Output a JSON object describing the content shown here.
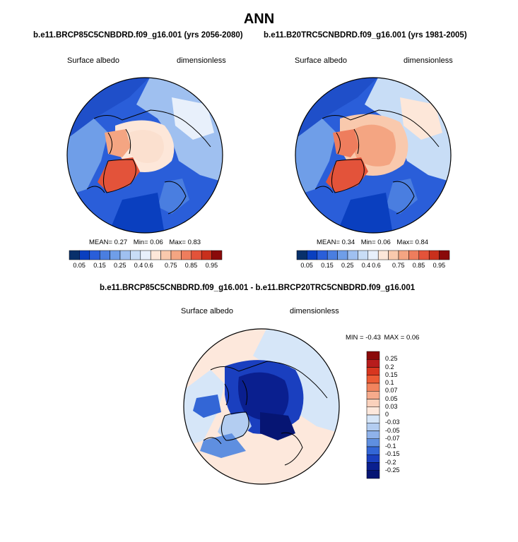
{
  "figure": {
    "title": "ANN",
    "diff_title": "b.e11.BRCP85C5CNBDRD.f09_g16.001 - b.e11.BRCP20TRC5CNBDRD.f09_g16.001"
  },
  "panels": [
    {
      "case": "b.e11.BRCP85C5CNBDRD.f09_g16.001 (yrs 2056-2080)",
      "var": "Surface albedo",
      "units": "dimensionless",
      "stats": {
        "mean_label": "MEAN=",
        "mean": "0.27",
        "min_label": "Min=",
        "min": "0.06",
        "max_label": "Max=",
        "max": "0.83"
      }
    },
    {
      "case": "b.e11.B20TRC5CNBDRD.f09_g16.001 (yrs 1981-2005)",
      "var": "Surface albedo",
      "units": "dimensionless",
      "stats": {
        "mean_label": "MEAN=",
        "mean": "0.34",
        "min_label": "Min=",
        "min": "0.06",
        "max_label": "Max=",
        "max": "0.84"
      }
    }
  ],
  "diff": {
    "var": "Surface albedo",
    "units": "dimensionless",
    "stats": {
      "min_label": "MIN =",
      "min": "-0.43",
      "max_label": "MAX =",
      "max": "0.06"
    }
  },
  "chart_data": [
    {
      "type": "map",
      "projection": "north-polar-stereographic",
      "title": "b.e11.BRCP85C5CNBDRD.f09_g16.001 (yrs 2056-2080)",
      "variable": "Surface albedo",
      "units": "dimensionless",
      "mean": 0.27,
      "min": 0.06,
      "max": 0.83,
      "colorbar_ticks": [
        "0.05",
        "0.15",
        "0.25",
        "0.4",
        "0.6",
        "0.75",
        "0.85",
        "0.95"
      ],
      "colorbar_levels": [
        0.05,
        0.1,
        0.15,
        0.2,
        0.25,
        0.3,
        0.4,
        0.5,
        0.6,
        0.65,
        0.75,
        0.8,
        0.85,
        0.9,
        0.95
      ]
    },
    {
      "type": "map",
      "projection": "north-polar-stereographic",
      "title": "b.e11.B20TRC5CNBDRD.f09_g16.001 (yrs 1981-2005)",
      "variable": "Surface albedo",
      "units": "dimensionless",
      "mean": 0.34,
      "min": 0.06,
      "max": 0.84,
      "colorbar_ticks": [
        "0.05",
        "0.15",
        "0.25",
        "0.4",
        "0.6",
        "0.75",
        "0.85",
        "0.95"
      ],
      "colorbar_levels": [
        0.05,
        0.1,
        0.15,
        0.2,
        0.25,
        0.3,
        0.4,
        0.5,
        0.6,
        0.65,
        0.75,
        0.8,
        0.85,
        0.9,
        0.95
      ]
    },
    {
      "type": "map",
      "projection": "north-polar-stereographic",
      "title": "b.e11.BRCP85C5CNBDRD.f09_g16.001 - b.e11.BRCP20TRC5CNBDRD.f09_g16.001",
      "variable": "Surface albedo",
      "units": "dimensionless",
      "min": -0.43,
      "max": 0.06,
      "colorbar_ticks": [
        "0.25",
        "0.2",
        "0.15",
        "0.1",
        "0.07",
        "0.05",
        "0.03",
        "0",
        "-0.03",
        "-0.05",
        "-0.07",
        "-0.1",
        "-0.15",
        "-0.2",
        "-0.25"
      ]
    }
  ],
  "colors": {
    "abs_scale": [
      "#08306b",
      "#0a3fbf",
      "#2a5ed9",
      "#4a7ee0",
      "#6f9ee8",
      "#9fc0f0",
      "#c8ddf6",
      "#e8f0fb",
      "#fde7d9",
      "#f9c9ad",
      "#f4a582",
      "#ee7d5d",
      "#e3533a",
      "#c9301c",
      "#8a0a0a"
    ],
    "diff_scale": [
      "#8a0a0a",
      "#b71c1c",
      "#d8361f",
      "#ec5b35",
      "#f2845e",
      "#f6ab8c",
      "#fad1bc",
      "#fde8dc",
      "#d6e6f8",
      "#b3cdf1",
      "#8fb2ea",
      "#5f8fe0",
      "#3366d6",
      "#1a3fbf",
      "#0a1f8f",
      "#061573"
    ],
    "ocean": "#2a5ed9",
    "land": "#9fc0f0",
    "coast": "#000000"
  }
}
